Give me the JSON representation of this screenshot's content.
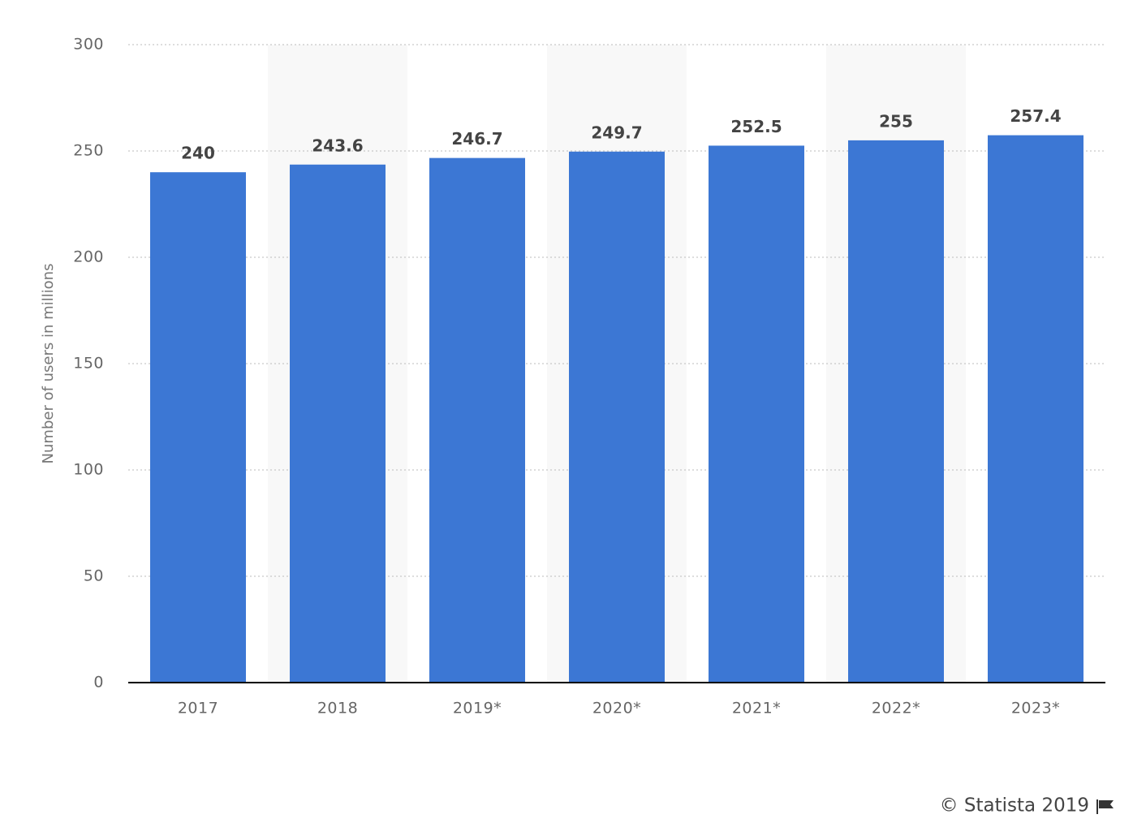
{
  "chart_data": {
    "type": "bar",
    "y_label": "Number of users in millions",
    "categories": [
      "2017",
      "2018",
      "2019*",
      "2020*",
      "2021*",
      "2022*",
      "2023*"
    ],
    "values": [
      240,
      243.6,
      246.7,
      249.7,
      252.5,
      255,
      257.4
    ],
    "color": "#3c77d4",
    "ylim": [
      0,
      300
    ],
    "yticks": [
      0,
      50,
      100,
      150,
      200,
      250,
      300
    ],
    "grid": true,
    "credit": "© Statista 2019"
  }
}
